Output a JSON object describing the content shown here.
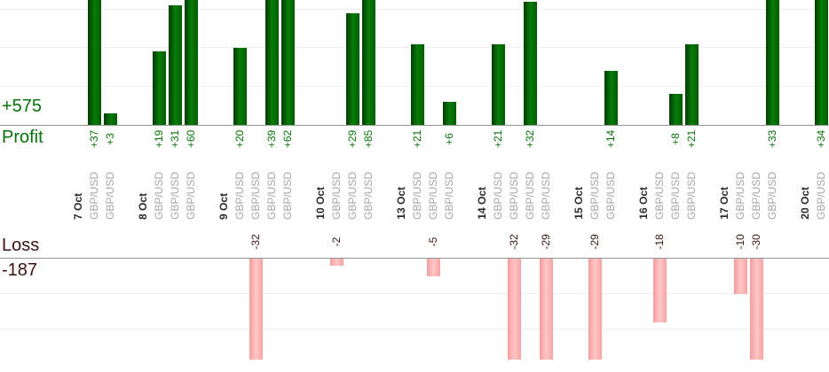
{
  "chart_data": {
    "type": "bar",
    "title": "",
    "xlabel": "",
    "ylabel": "",
    "legend": false,
    "grid": true,
    "profit_axis": {
      "label": "Profit",
      "total": "+575"
    },
    "loss_axis": {
      "label": "Loss",
      "total": "-187"
    },
    "groups": [
      {
        "date": "7 Oct",
        "trades": [
          {
            "instrument": "GBP/USD",
            "value": 37
          },
          {
            "instrument": "GBP/USD",
            "value": 3
          }
        ]
      },
      {
        "date": "8 Oct",
        "trades": [
          {
            "instrument": "GBP/USD",
            "value": 19
          },
          {
            "instrument": "GBP/USD",
            "value": 31
          },
          {
            "instrument": "GBP/USD",
            "value": 60
          }
        ]
      },
      {
        "date": "9 Oct",
        "trades": [
          {
            "instrument": "GBP/USD",
            "value": 20
          },
          {
            "instrument": "GBP/USD",
            "value": -32
          },
          {
            "instrument": "GBP/USD",
            "value": 39
          },
          {
            "instrument": "GBP/USD",
            "value": 62
          }
        ]
      },
      {
        "date": "10 Oct",
        "trades": [
          {
            "instrument": "GBP/USD",
            "value": -2
          },
          {
            "instrument": "GBP/USD",
            "value": 29
          },
          {
            "instrument": "GBP/USD",
            "value": 85
          }
        ]
      },
      {
        "date": "13 Oct",
        "trades": [
          {
            "instrument": "GBP/USD",
            "value": 21
          },
          {
            "instrument": "GBP/USD",
            "value": -5
          },
          {
            "instrument": "GBP/USD",
            "value": 6
          }
        ]
      },
      {
        "date": "14 Oct",
        "trades": [
          {
            "instrument": "GBP/USD",
            "value": 21
          },
          {
            "instrument": "GBP/USD",
            "value": -32
          },
          {
            "instrument": "GBP/USD",
            "value": 32
          },
          {
            "instrument": "GBP/USD",
            "value": -29
          }
        ]
      },
      {
        "date": "15 Oct",
        "trades": [
          {
            "instrument": "GBP/USD",
            "value": -29
          },
          {
            "instrument": "GBP/USD",
            "value": 14
          }
        ]
      },
      {
        "date": "16 Oct",
        "trades": [
          {
            "instrument": "GBP/USD",
            "value": -18
          },
          {
            "instrument": "GBP/USD",
            "value": 8
          },
          {
            "instrument": "GBP/USD",
            "value": 21
          }
        ]
      },
      {
        "date": "17 Oct",
        "trades": [
          {
            "instrument": "GBP/USD",
            "value": -10
          },
          {
            "instrument": "GBP/USD",
            "value": -30
          },
          {
            "instrument": "GBP/USD",
            "value": 33
          }
        ]
      },
      {
        "date": "20 Oct",
        "trades": [
          {
            "instrument": "GBP/USD",
            "value": 34
          }
        ]
      }
    ],
    "colors": {
      "profit_bar_gradient": [
        "#043b04",
        "#077c07",
        "#045c04"
      ],
      "loss_bar_gradient": [
        "#f49c9c",
        "#ffc6c6",
        "#f7a3a3"
      ],
      "profit_text": "#077307",
      "loss_text": "#3f1212",
      "date_text": "#2b2b2b",
      "instrument_text": "#a6a6a6",
      "axis_line": "#949494",
      "gridline": "#efefef"
    }
  }
}
